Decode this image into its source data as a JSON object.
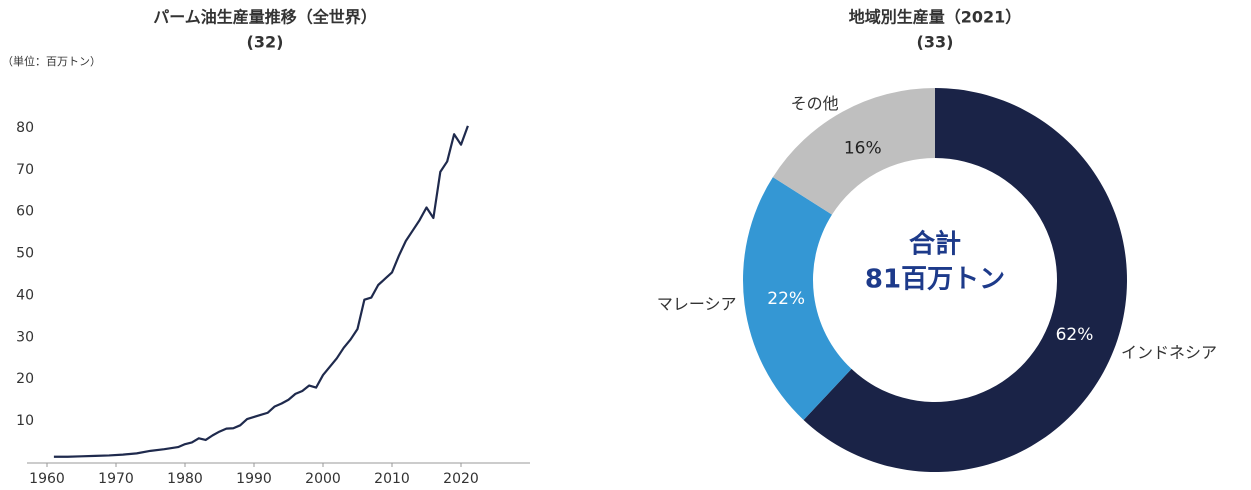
{
  "chart_data": [
    {
      "type": "line",
      "title": "パーム油生産量推移（全世界）",
      "subtitle": "(32)",
      "y_label": "（単位：百万トン）",
      "x": [
        1961,
        1963,
        1965,
        1967,
        1969,
        1971,
        1973,
        1975,
        1977,
        1979,
        1980,
        1981,
        1982,
        1983,
        1984,
        1985,
        1986,
        1987,
        1988,
        1989,
        1990,
        1991,
        1992,
        1993,
        1994,
        1995,
        1996,
        1997,
        1998,
        1999,
        2000,
        2001,
        2002,
        2003,
        2004,
        2005,
        2006,
        2007,
        2008,
        2009,
        2010,
        2011,
        2012,
        2013,
        2014,
        2015,
        2016,
        2017,
        2018,
        2019,
        2020,
        2021
      ],
      "series": [
        {
          "name": "パーム油生産量",
          "color": "#1f2a4d",
          "values": [
            1.5,
            1.5,
            1.6,
            1.7,
            1.8,
            2.0,
            2.3,
            2.9,
            3.3,
            3.8,
            4.5,
            4.9,
            5.9,
            5.5,
            6.6,
            7.5,
            8.2,
            8.3,
            9.0,
            10.5,
            11.0,
            11.5,
            12.0,
            13.5,
            14.2,
            15.1,
            16.5,
            17.2,
            18.5,
            18.0,
            21.0,
            23.0,
            25.0,
            27.5,
            29.5,
            32.0,
            39.0,
            39.5,
            42.5,
            44.0,
            45.5,
            49.5,
            53.0,
            55.5,
            58.0,
            61.0,
            58.5,
            69.5,
            72.0,
            78.5,
            76.0,
            80.5
          ]
        }
      ],
      "xlim": [
        1960,
        2030
      ],
      "xticks": [
        1960,
        1970,
        1980,
        1990,
        2000,
        2010,
        2020
      ],
      "ylim": [
        0,
        85
      ],
      "yticks": [
        10,
        20,
        30,
        40,
        50,
        60,
        70,
        80
      ],
      "grid": false
    },
    {
      "type": "donut",
      "title": "地域別生産量（2021）",
      "subtitle": "(33)",
      "center_label": "合計",
      "center_value": "81百万トン",
      "categories": [
        "インドネシア",
        "マレーシア",
        "その他"
      ],
      "values": [
        62,
        22,
        16
      ],
      "value_labels": [
        "62%",
        "22%",
        "16%"
      ],
      "colors": [
        "#1a2347",
        "#3497d4",
        "#bfbfbf"
      ]
    }
  ]
}
